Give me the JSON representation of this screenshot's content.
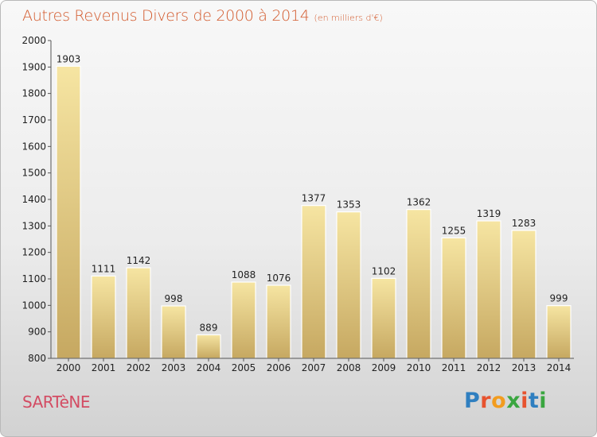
{
  "header": {
    "title": "Autres Revenus Divers de 2000 à 2014",
    "unit": "(en milliers d'€)"
  },
  "footer": {
    "place": "SARTèNE",
    "brand": "Proxiti",
    "brand_colors": [
      "#2f7fc0",
      "#e7532f",
      "#f29c1f",
      "#3aa640",
      "#e7532f",
      "#2f7fc0",
      "#3aa640"
    ]
  },
  "colors": {
    "bar_light": "#f6e5a2",
    "bar_dark": "#c6a861",
    "axis": "#555555",
    "text": "#222222",
    "title": "#d35a2d",
    "place": "#d34c63"
  },
  "chart_data": {
    "type": "bar",
    "categories": [
      "2000",
      "2001",
      "2002",
      "2003",
      "2004",
      "2005",
      "2006",
      "2007",
      "2008",
      "2009",
      "2010",
      "2011",
      "2012",
      "2013",
      "2014"
    ],
    "values": [
      1903,
      1111,
      1142,
      998,
      889,
      1088,
      1076,
      1377,
      1353,
      1102,
      1362,
      1255,
      1319,
      1283,
      999
    ],
    "data_labels": [
      "1903",
      "1111",
      "1142",
      "998",
      "889",
      "1088",
      "1076",
      "1377",
      "1353",
      "1102",
      "1362",
      "1255",
      "1319",
      "1283",
      "999"
    ],
    "yticks": [
      "800",
      "900",
      "1000",
      "1100",
      "1200",
      "1300",
      "1400",
      "1500",
      "1600",
      "1700",
      "1800",
      "1900",
      "2000"
    ],
    "ylim": [
      800,
      2000
    ],
    "grid": false,
    "legend": "none"
  }
}
